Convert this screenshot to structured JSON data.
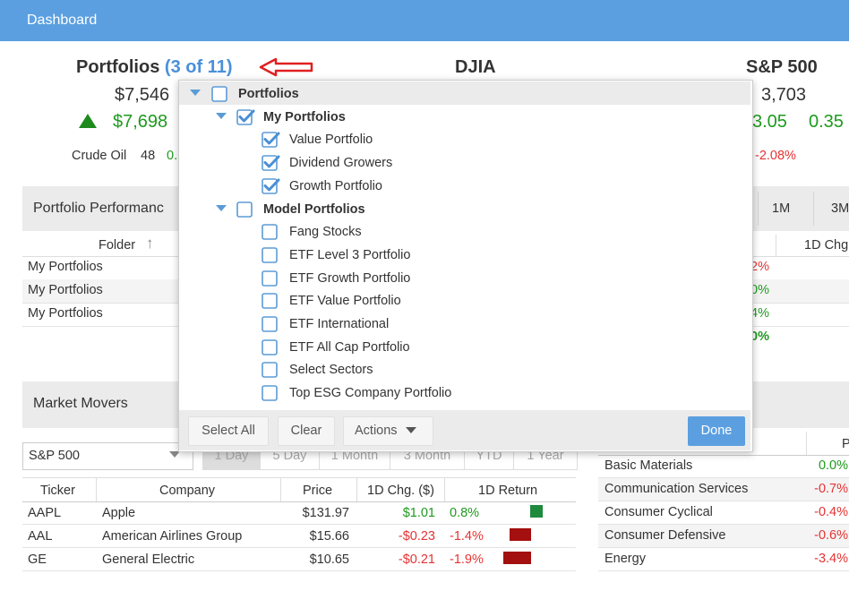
{
  "header": {
    "title": "Dashboard"
  },
  "summary": {
    "portfolios_label": "Portfolios",
    "portfolios_count": "(3 of 11)",
    "portfolio_value": "$7,546",
    "portfolio_change": "$7,698",
    "crude_oil_label": "Crude Oil",
    "crude_oil_value": "48",
    "crude_oil_change": "0.",
    "djia_label": "DJIA",
    "sp500_label": "S&P 500",
    "sp500_value": "3,703",
    "sp500_change": "3.05",
    "sp500_change_pct": "0.35",
    "sp500_other": "-2.08%"
  },
  "performance": {
    "title": "Portfolio Performanc",
    "tabs": [
      "1M",
      "3M"
    ],
    "columns": [
      "Folder",
      "1D Chg"
    ],
    "rows": [
      {
        "folder": "My Portfolios",
        "value": "2%"
      },
      {
        "folder": "My Portfolios",
        "value": "0%"
      },
      {
        "folder": "My Portfolios",
        "value": "4%"
      }
    ],
    "total": "0%"
  },
  "market_movers": {
    "title": "Market Movers",
    "index_select": "S&P 500",
    "periods": [
      "1 Day",
      "5 Day",
      "1 Month",
      "3 Month",
      "YTD",
      "1 Year"
    ],
    "columns": [
      "Ticker",
      "Company",
      "Price",
      "1D Chg. ($)",
      "1D Return"
    ],
    "rows": [
      [
        "AAPL",
        "Apple",
        "$131.97",
        "$1.01",
        "0.8%"
      ],
      [
        "AAL",
        "American Airlines Group",
        "$15.66",
        "-$0.23",
        "-1.4%"
      ],
      [
        "GE",
        "General Electric",
        "$10.65",
        "-$0.21",
        "-1.9%"
      ]
    ]
  },
  "sectors": {
    "header": "P",
    "rows": [
      [
        "Basic Materials",
        "0.0%"
      ],
      [
        "Communication Services",
        "-0.7%"
      ],
      [
        "Consumer Cyclical",
        "-0.4%"
      ],
      [
        "Consumer Defensive",
        "-0.6%"
      ],
      [
        "Energy",
        "-3.4%"
      ]
    ]
  },
  "dropdown": {
    "root": {
      "label": "Portfolios",
      "checked": false
    },
    "groups": [
      {
        "label": "My Portfolios",
        "checked": true,
        "items": [
          {
            "label": "Value Portfolio",
            "checked": true
          },
          {
            "label": "Dividend Growers",
            "checked": true
          },
          {
            "label": "Growth Portfolio",
            "checked": true
          }
        ]
      },
      {
        "label": "Model Portfolios",
        "checked": false,
        "items": [
          {
            "label": "Fang Stocks",
            "checked": false
          },
          {
            "label": "ETF Level 3 Portfolio",
            "checked": false
          },
          {
            "label": "ETF Growth Portfolio",
            "checked": false
          },
          {
            "label": "ETF Value Portfolio",
            "checked": false
          },
          {
            "label": "ETF International",
            "checked": false
          },
          {
            "label": "ETF All Cap Portfolio",
            "checked": false
          },
          {
            "label": "Select Sectors",
            "checked": false
          },
          {
            "label": "Top ESG Company Portfolio",
            "checked": false
          }
        ]
      }
    ],
    "buttons": {
      "select_all": "Select All",
      "clear": "Clear",
      "actions": "Actions",
      "done": "Done"
    }
  }
}
